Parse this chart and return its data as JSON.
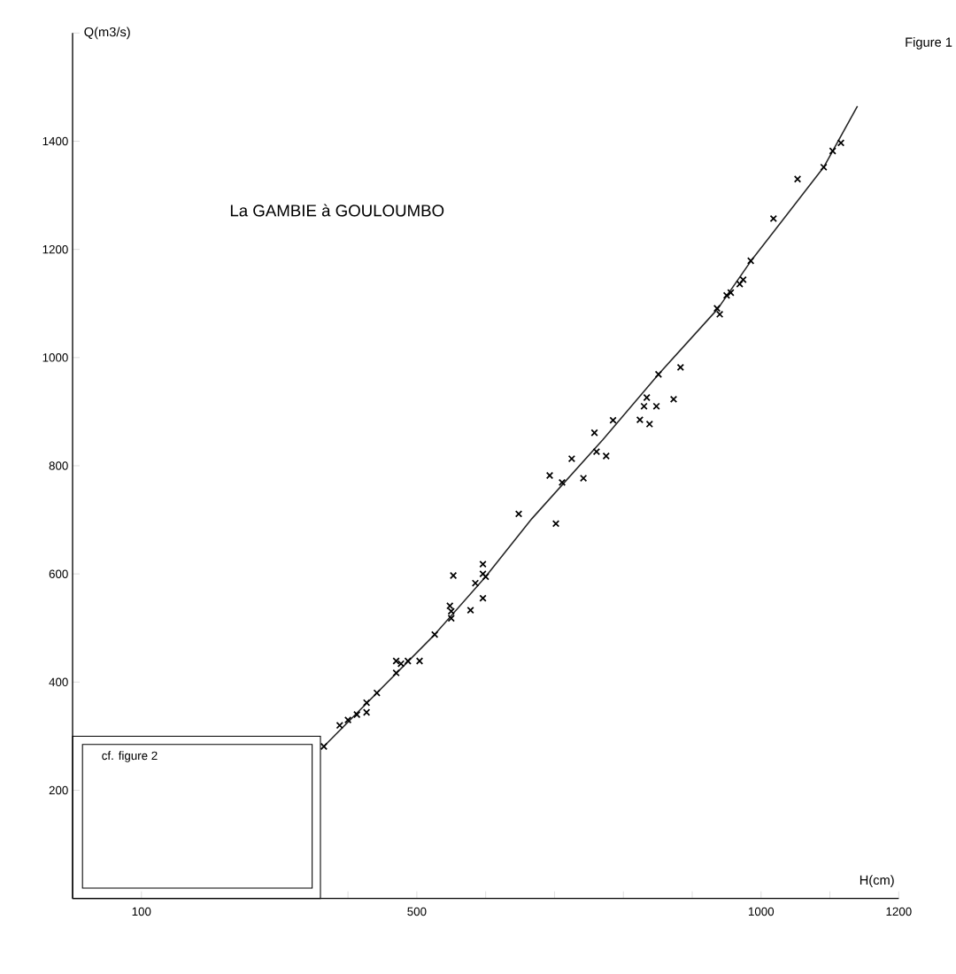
{
  "chart_data": {
    "type": "scatter",
    "title": "La GAMBIE à GOULOUMBO",
    "xlabel": "H(cm)",
    "ylabel": "Q(m3/s)",
    "annotations": [
      "Figure 1",
      "cf. figure 2"
    ],
    "xlim": [
      0,
      1200
    ],
    "ylim": [
      0,
      1600
    ],
    "xticks": [
      100,
      {
        "value": 400,
        "label": null
      },
      500,
      {
        "value": 600,
        "label": null
      },
      {
        "value": 700,
        "label": null
      },
      {
        "value": 800,
        "label": null
      },
      {
        "value": 900,
        "label": null
      },
      1000,
      {
        "value": 1100,
        "label": null
      },
      1200
    ],
    "yticks": [
      200,
      400,
      600,
      800,
      1000,
      1200,
      1400,
      {
        "value": 1600,
        "label": null
      }
    ],
    "series": [
      {
        "marker": "cross",
        "color": "#000000",
        "x": [
          365,
          388,
          400,
          413,
          427,
          427,
          442,
          470,
          470,
          477,
          487,
          504,
          526,
          548,
          550,
          550,
          553,
          578,
          585,
          596,
          596,
          600,
          596,
          648,
          702,
          693,
          711,
          725,
          742,
          761,
          775,
          758,
          785,
          824,
          830,
          834,
          838,
          848,
          851,
          873,
          883,
          936,
          940,
          950,
          956,
          969,
          974,
          985,
          1018,
          1053,
          1091,
          1104,
          1116
        ],
        "values": [
          281,
          320,
          330,
          340,
          344,
          362,
          380,
          417,
          439,
          434,
          439,
          439,
          488,
          541,
          531,
          518,
          597,
          533,
          583,
          618,
          600,
          595,
          555,
          711,
          693,
          782,
          769,
          813,
          777,
          826,
          818,
          861,
          884,
          885,
          910,
          926,
          877,
          910,
          969,
          923,
          982,
          1091,
          1080,
          1115,
          1120,
          1136,
          1144,
          1179,
          1257,
          1330,
          1352,
          1382,
          1397
        ]
      },
      {
        "type": "line",
        "color": "#262626",
        "x": [
          365,
          526,
          600,
          667,
          770,
          851,
          937,
          985,
          1091,
          1140
        ],
        "values": [
          281,
          488,
          595,
          702,
          848,
          969,
          1090,
          1178,
          1352,
          1465
        ]
      }
    ]
  }
}
